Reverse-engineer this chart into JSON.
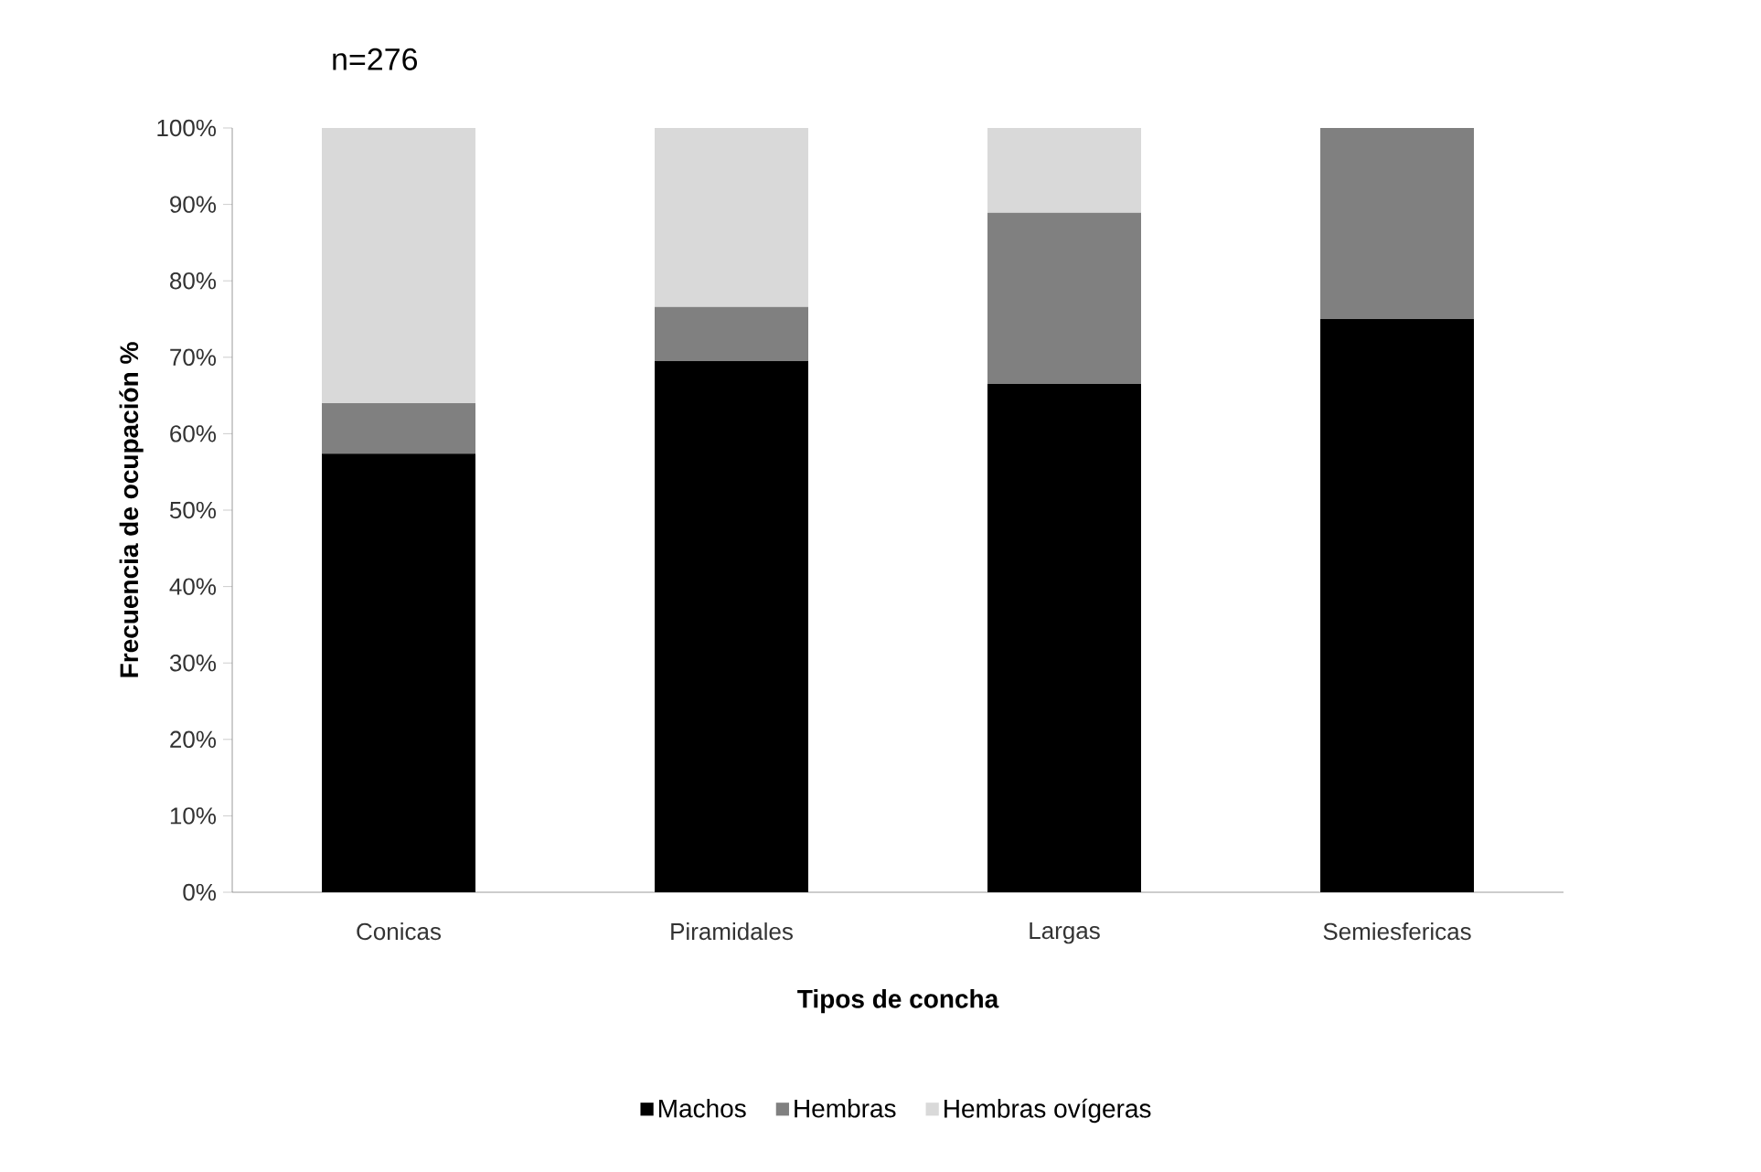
{
  "chart_data": {
    "type": "bar",
    "stacked": true,
    "title": "n=276",
    "xlabel": "Tipos de concha",
    "ylabel": "Frecuencia de ocupación %",
    "categories": [
      "Conicas",
      "Piramidales",
      "Largas",
      "Semiesfericas"
    ],
    "series": [
      {
        "name": "Machos",
        "color": "#000000",
        "values": [
          57.4,
          69.5,
          66.5,
          75
        ]
      },
      {
        "name": "Hembras",
        "color": "#808080",
        "values": [
          6.6,
          7.1,
          22.4,
          25
        ]
      },
      {
        "name": "Hembras ovígeras",
        "color": "#d9d9d9",
        "values": [
          36,
          23.4,
          11.1,
          null
        ]
      }
    ],
    "ylim": [
      0,
      100
    ],
    "yticks": [
      {
        "value": 0,
        "label": "0%"
      },
      {
        "value": 10,
        "label": "10%"
      },
      {
        "value": 20,
        "label": "20%"
      },
      {
        "value": 30,
        "label": "30%"
      },
      {
        "value": 40,
        "label": "40%"
      },
      {
        "value": 50,
        "label": "50%"
      },
      {
        "value": 60,
        "label": "60%"
      },
      {
        "value": 70,
        "label": "70%"
      },
      {
        "value": 80,
        "label": "80%"
      },
      {
        "value": 90,
        "label": "90%"
      },
      {
        "value": 100,
        "label": "100%"
      }
    ],
    "grid": false,
    "legend": "bottom"
  }
}
